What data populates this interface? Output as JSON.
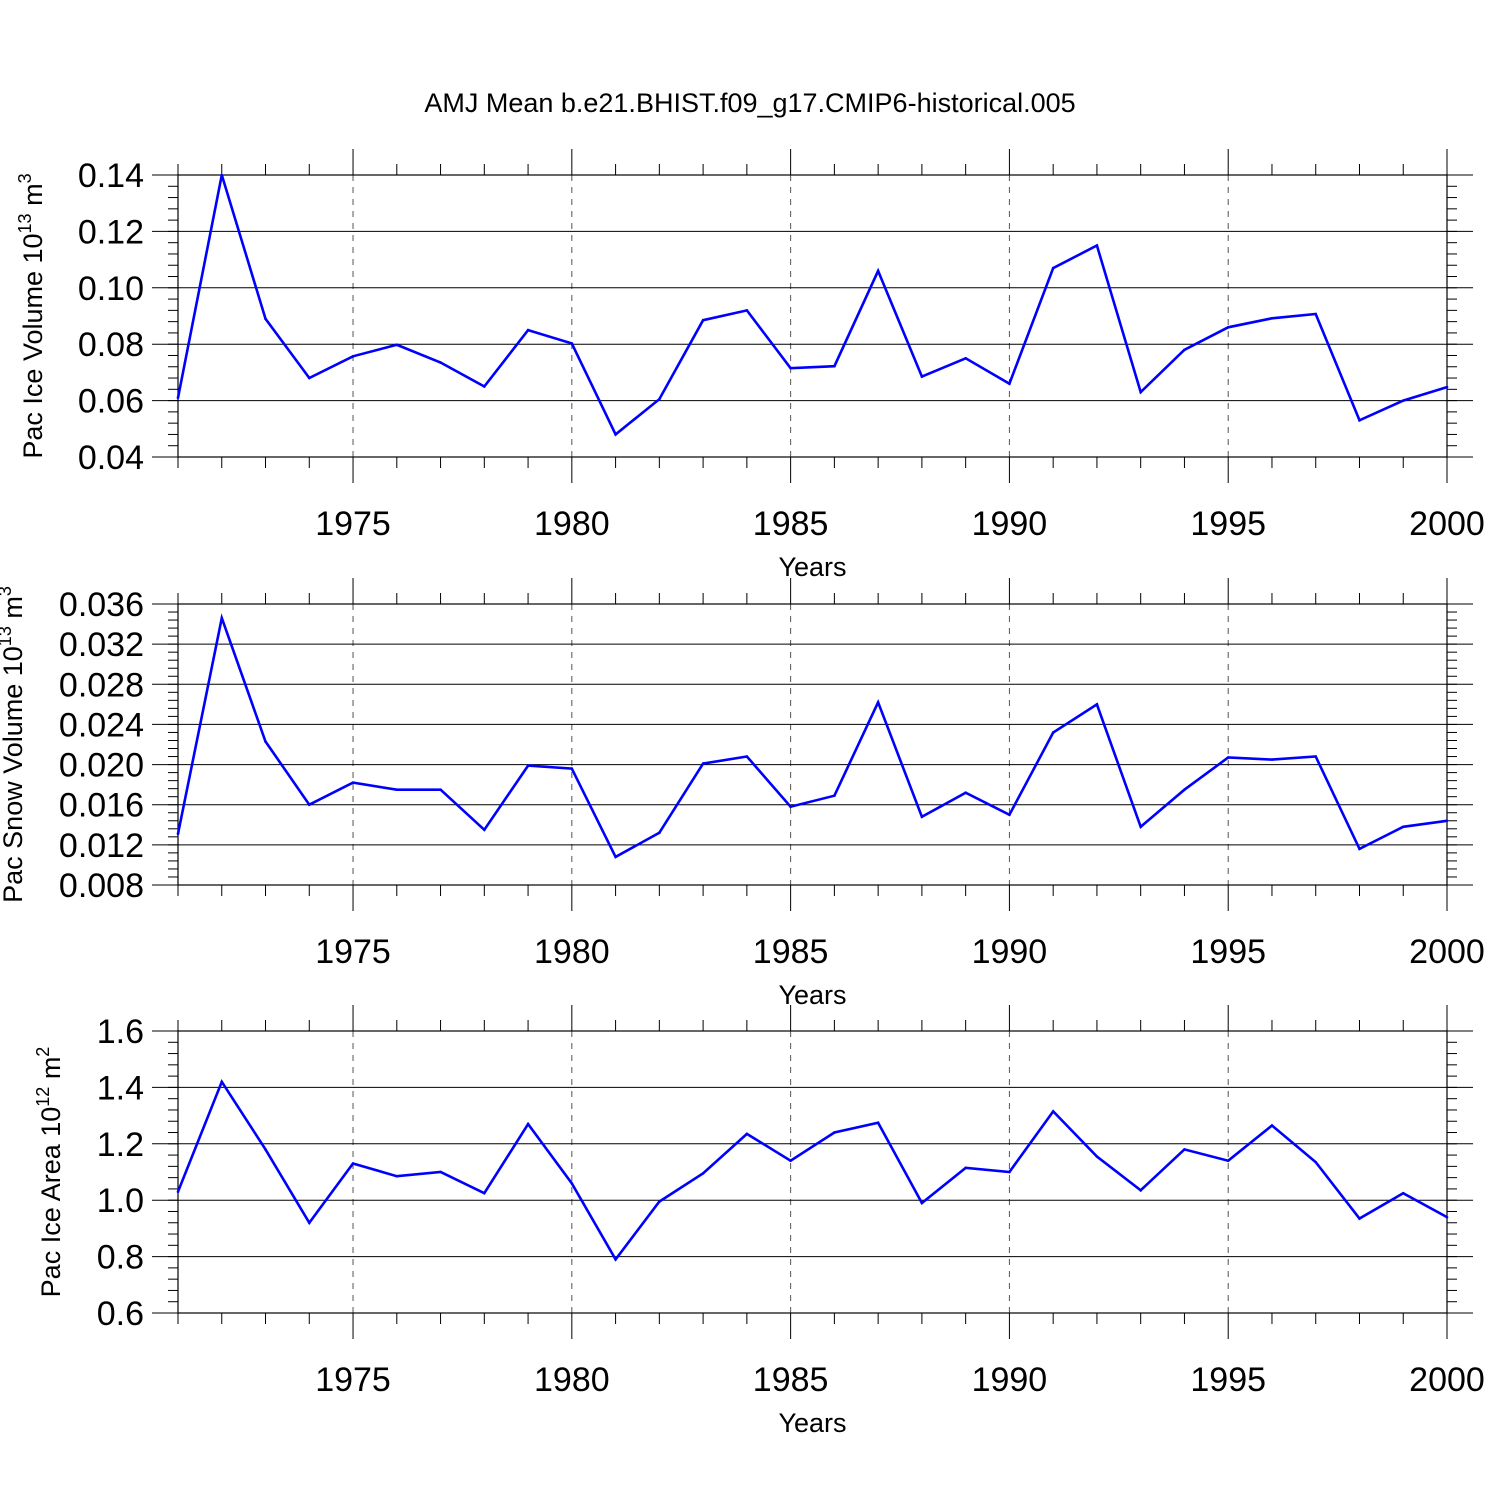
{
  "title": "AMJ Mean b.e21.BHIST.f09_g17.CMIP6-historical.005",
  "colors": {
    "line": "#0000ff",
    "axis": "#000000",
    "grid": "#555555",
    "background": "#ffffff"
  },
  "chart_data": [
    {
      "type": "line",
      "name": "ice-volume",
      "ylabel": {
        "prefix": "Pac Ice Volume 10",
        "exp": "13",
        "unit": " m",
        "unit_exp": "3"
      },
      "xlabel": "Years",
      "xlim": [
        1971,
        2000
      ],
      "ylim": [
        0.04,
        0.14
      ],
      "x_ticks": [
        1975,
        1980,
        1985,
        1990,
        1995,
        2000
      ],
      "y_ticks": [
        "0.04",
        "0.06",
        "0.08",
        "0.10",
        "0.12",
        "0.14"
      ],
      "y_minor_step": 0.004,
      "grid": "vertical dashed at major x ticks",
      "x": [
        1971,
        1972,
        1973,
        1974,
        1975,
        1976,
        1977,
        1978,
        1979,
        1980,
        1981,
        1982,
        1983,
        1984,
        1985,
        1986,
        1987,
        1988,
        1989,
        1990,
        1991,
        1992,
        1993,
        1994,
        1995,
        1996,
        1997,
        1998,
        1999,
        2000
      ],
      "values": [
        0.061,
        0.14,
        0.089,
        0.068,
        0.0757,
        0.0798,
        0.0735,
        0.065,
        0.085,
        0.0803,
        0.048,
        0.0605,
        0.0885,
        0.092,
        0.0715,
        0.0722,
        0.106,
        0.0685,
        0.075,
        0.066,
        0.107,
        0.115,
        0.063,
        0.078,
        0.086,
        0.0892,
        0.0907,
        0.053,
        0.06,
        0.0648
      ]
    },
    {
      "type": "line",
      "name": "snow-volume",
      "ylabel": {
        "prefix": "Pac Snow Volume 10",
        "exp": "13",
        "unit": " m",
        "unit_exp": "3"
      },
      "xlabel": "Years",
      "xlim": [
        1971,
        2000
      ],
      "ylim": [
        0.008,
        0.036
      ],
      "x_ticks": [
        1975,
        1980,
        1985,
        1990,
        1995,
        2000
      ],
      "y_ticks": [
        "0.008",
        "0.012",
        "0.016",
        "0.020",
        "0.024",
        "0.028",
        "0.032",
        "0.036"
      ],
      "y_minor_step": 0.0008,
      "grid": "vertical dashed at major x ticks",
      "x": [
        1971,
        1972,
        1973,
        1974,
        1975,
        1976,
        1977,
        1978,
        1979,
        1980,
        1981,
        1982,
        1983,
        1984,
        1985,
        1986,
        1987,
        1988,
        1989,
        1990,
        1991,
        1992,
        1993,
        1994,
        1995,
        1996,
        1997,
        1998,
        1999,
        2000
      ],
      "values": [
        0.0131,
        0.0346,
        0.0223,
        0.016,
        0.0182,
        0.0175,
        0.0175,
        0.0135,
        0.0199,
        0.0196,
        0.0108,
        0.0132,
        0.0201,
        0.0208,
        0.0158,
        0.0169,
        0.0262,
        0.0148,
        0.0172,
        0.015,
        0.0232,
        0.026,
        0.0138,
        0.0175,
        0.0207,
        0.0205,
        0.0208,
        0.0116,
        0.0138,
        0.0144
      ]
    },
    {
      "type": "line",
      "name": "ice-area",
      "ylabel": {
        "prefix": "Pac Ice Area 10",
        "exp": "12",
        "unit": " m",
        "unit_exp": "2"
      },
      "xlabel": "Years",
      "xlim": [
        1971,
        2000
      ],
      "ylim": [
        0.6,
        1.6
      ],
      "x_ticks": [
        1975,
        1980,
        1985,
        1990,
        1995,
        2000
      ],
      "y_ticks": [
        "0.6",
        "0.8",
        "1.0",
        "1.2",
        "1.4",
        "1.6"
      ],
      "y_minor_step": 0.04,
      "grid": "vertical dashed at major x ticks",
      "x": [
        1971,
        1972,
        1973,
        1974,
        1975,
        1976,
        1977,
        1978,
        1979,
        1980,
        1981,
        1982,
        1983,
        1984,
        1985,
        1986,
        1987,
        1988,
        1989,
        1990,
        1991,
        1992,
        1993,
        1994,
        1995,
        1996,
        1997,
        1998,
        1999,
        2000
      ],
      "values": [
        1.03,
        1.42,
        1.18,
        0.92,
        1.13,
        1.085,
        1.1,
        1.025,
        1.27,
        1.06,
        0.79,
        0.995,
        1.095,
        1.235,
        1.14,
        1.24,
        1.275,
        0.99,
        1.115,
        1.1,
        1.315,
        1.155,
        1.035,
        1.18,
        1.14,
        1.265,
        1.135,
        0.935,
        1.025,
        0.94
      ]
    }
  ]
}
